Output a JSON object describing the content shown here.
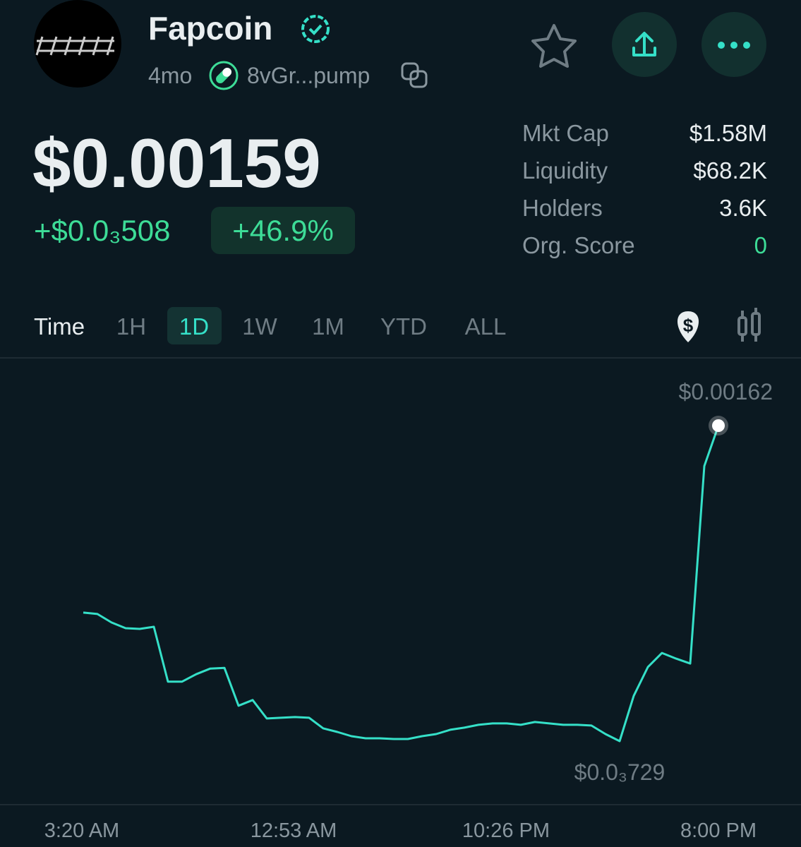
{
  "header": {
    "name": "Fapcoin",
    "age": "4mo",
    "address": "8vGr...pump"
  },
  "price": "$0.00159",
  "change": "+$0.0₃508",
  "change_pct": "+46.9%",
  "stats": [
    {
      "label": "Mkt Cap",
      "value": "$1.58M"
    },
    {
      "label": "Liquidity",
      "value": "$68.2K"
    },
    {
      "label": "Holders",
      "value": "3.6K"
    },
    {
      "label": "Org. Score",
      "value": "0"
    }
  ],
  "timeframes": {
    "label": "Time",
    "options": [
      "1H",
      "1D",
      "1W",
      "1M",
      "YTD",
      "ALL"
    ],
    "selected": "1D"
  },
  "chart_data": {
    "type": "line",
    "color": "#35e0c8",
    "values": [
      0.001092,
      0.001088,
      0.001064,
      0.001048,
      0.001046,
      0.001052,
      0.000897,
      0.000897,
      0.000918,
      0.000934,
      0.000936,
      0.000829,
      0.000845,
      0.000793,
      0.000795,
      0.000797,
      0.000795,
      0.000765,
      0.000755,
      0.000743,
      0.000737,
      0.000737,
      0.000735,
      0.000735,
      0.000743,
      0.000749,
      0.000761,
      0.000767,
      0.000775,
      0.000779,
      0.000779,
      0.000775,
      0.000783,
      0.000779,
      0.000775,
      0.000775,
      0.000773,
      0.000749,
      0.000729,
      0.000857,
      0.000938,
      0.000978,
      0.000962,
      0.000948,
      0.001506,
      0.00162
    ],
    "annotations": [
      {
        "label": "$0.00162",
        "value": 0.00162
      },
      {
        "label": "$0.0₃729",
        "value": 0.000729
      }
    ],
    "x_labels": [
      "3:20 AM",
      "12:53 AM",
      "10:26 PM",
      "8:00 PM"
    ]
  }
}
